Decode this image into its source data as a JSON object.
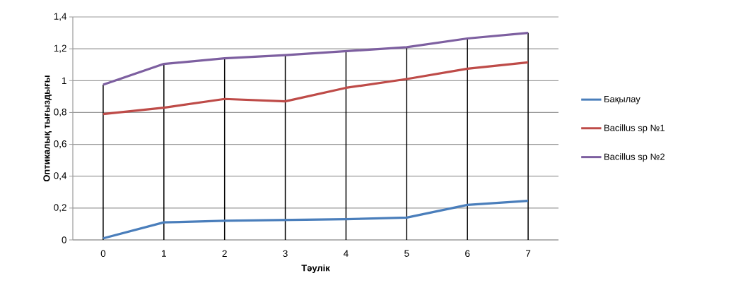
{
  "chart_data": {
    "type": "line",
    "xlabel": "Тәулік",
    "ylabel": "Оптикалық тығыздығы",
    "x": [
      0,
      1,
      2,
      3,
      4,
      5,
      6,
      7
    ],
    "series": [
      {
        "name": "Бақылау",
        "color": "#4a7ebb",
        "values": [
          0.01,
          0.11,
          0.12,
          0.125,
          0.13,
          0.14,
          0.22,
          0.245
        ]
      },
      {
        "name": "Bacillus sp №1",
        "color": "#be4b48",
        "values": [
          0.79,
          0.83,
          0.885,
          0.87,
          0.955,
          1.01,
          1.075,
          1.115
        ]
      },
      {
        "name": "Bacillus sp №2",
        "color": "#7d5fa0",
        "values": [
          0.975,
          1.105,
          1.14,
          1.16,
          1.185,
          1.21,
          1.265,
          1.3
        ]
      }
    ],
    "xlim": [
      -0.5,
      7.5
    ],
    "xticks": [
      0,
      1,
      2,
      3,
      4,
      5,
      6,
      7
    ],
    "ylim": [
      0,
      1.4
    ],
    "yticks": [
      0,
      {
        "value": 0.2,
        "label": "0,2"
      },
      {
        "value": 0.4,
        "label": "0,4"
      },
      {
        "value": 0.6,
        "label": "0,6"
      },
      {
        "value": 0.8,
        "label": "0,8"
      },
      1,
      {
        "value": 1.2,
        "label": "1,2"
      },
      {
        "value": 1.4,
        "label": "1,4"
      }
    ],
    "ref_lines": [
      {
        "axis": "x",
        "value": 0,
        "color": "#000000"
      },
      {
        "axis": "x",
        "value": 1,
        "color": "#000000"
      },
      {
        "axis": "x",
        "value": 2,
        "color": "#000000"
      },
      {
        "axis": "x",
        "value": 3,
        "color": "#000000"
      },
      {
        "axis": "x",
        "value": 4,
        "color": "#000000"
      },
      {
        "axis": "x",
        "value": 5,
        "color": "#000000"
      },
      {
        "axis": "x",
        "value": 6,
        "color": "#000000"
      },
      {
        "axis": "x",
        "value": 7,
        "color": "#000000"
      }
    ],
    "grid": "y",
    "legend": "right",
    "marker": "none",
    "line_style": "solid"
  }
}
